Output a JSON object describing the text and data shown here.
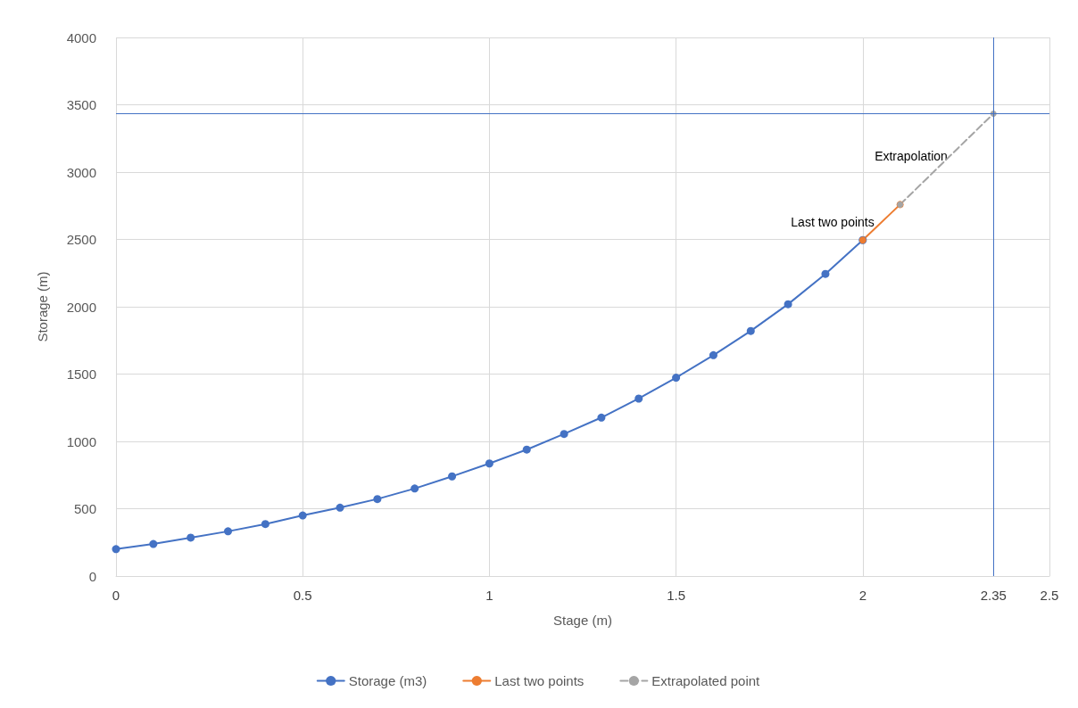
{
  "chart_data": {
    "type": "line",
    "xlabel": "Stage (m)",
    "ylabel": "Storage (m)",
    "xlim": [
      0,
      2.5
    ],
    "xticks": [
      0,
      0.5,
      1,
      1.5,
      2,
      2.35,
      2.5
    ],
    "ylim": [
      0,
      4000
    ],
    "yticks": [
      0,
      500,
      1000,
      1500,
      2000,
      2500,
      3000,
      3500,
      4000
    ],
    "series": [
      {
        "name": "Storage (m3)",
        "color": "#4472c4",
        "x": [
          0,
          0.1,
          0.2,
          0.3,
          0.4,
          0.5,
          0.6,
          0.7,
          0.8,
          0.9,
          1,
          1.1,
          1.2,
          1.3,
          1.4,
          1.5,
          1.6,
          1.7,
          1.8,
          1.9,
          2
        ],
        "values": [
          200,
          238,
          285,
          332,
          386,
          450,
          508,
          572,
          650,
          740,
          836,
          939,
          1055,
          1177,
          1318,
          1473,
          1640,
          1820,
          2019,
          2244,
          2495
        ]
      },
      {
        "name": "Last two points",
        "color": "#ed7d31",
        "x": [
          2,
          2.1
        ],
        "values": [
          2495,
          2759
        ]
      },
      {
        "name": "Extrapolated point",
        "color": "#a5a5a5",
        "line_style": "dashed",
        "x": [
          2.1,
          2.35
        ],
        "values": [
          2759,
          3434
        ]
      }
    ],
    "ref_lines": [
      {
        "axis": "x",
        "value": 2.35,
        "color": "#4472c4"
      },
      {
        "axis": "y",
        "value": 3434,
        "color": "#4472c4"
      }
    ],
    "annotations": [
      "Extrapolation",
      "Last two points"
    ],
    "grid": true,
    "legend": "bottom",
    "marker": "circle",
    "line_style": "solid"
  }
}
